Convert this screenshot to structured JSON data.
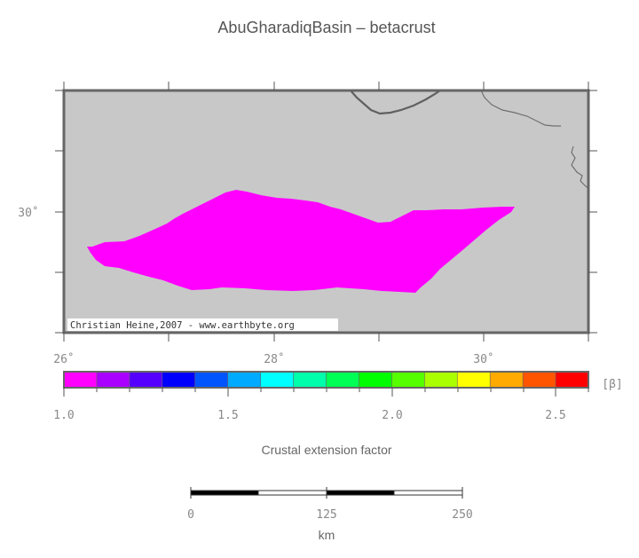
{
  "title": "AbuGharadiqBasin – betacrust",
  "map": {
    "lon_labels": [
      "26˚",
      "28˚",
      "30˚"
    ],
    "lat_labels": [
      "30˚"
    ],
    "credit": "Christian Heine,2007 - www.earthbyte.org",
    "land_color": "#c8c8c8",
    "basin_color": "#ff00ff",
    "coastline_color": "#606060"
  },
  "colorbar": {
    "unit": "[β]",
    "tick_labels": [
      "1.0",
      "1.5",
      "2.0",
      "2.5"
    ],
    "caption": "Crustal extension factor",
    "colors": [
      "#ff00ff",
      "#aa00ff",
      "#5500ff",
      "#0000ff",
      "#0055ff",
      "#00aaff",
      "#00ffff",
      "#00ffaa",
      "#00ff55",
      "#00ff00",
      "#55ff00",
      "#aaff00",
      "#ffff00",
      "#ffaa00",
      "#ff5500",
      "#ff0000"
    ]
  },
  "scalebar": {
    "tick_labels": [
      "0",
      "125",
      "250"
    ],
    "unit": "km"
  }
}
